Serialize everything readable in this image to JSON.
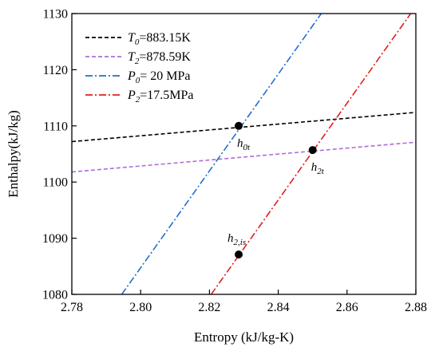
{
  "chart_data": {
    "type": "line",
    "xlabel": "Entropy (kJ/kg-K)",
    "ylabel": "Enthalpy(kJ/kg)",
    "xlim": [
      2.78,
      2.88
    ],
    "ylim": [
      1080,
      1130
    ],
    "xticks": [
      "2.78",
      "2.80",
      "2.82",
      "2.84",
      "2.86",
      "2.88"
    ],
    "yticks": [
      "1080",
      "1090",
      "1100",
      "1110",
      "1120",
      "1130"
    ],
    "grid": false,
    "legend_position": "top-left",
    "series": [
      {
        "name": "T0=883.15K",
        "label_main": "T",
        "label_sub": "0",
        "label_rest": "=883.15K",
        "color": "#000000",
        "dash": "dashed",
        "x": [
          2.78,
          2.88
        ],
        "y": [
          1107.2,
          1112.4
        ]
      },
      {
        "name": "T2=878.59K",
        "label_main": "T",
        "label_sub": "2",
        "label_rest": "=878.59K",
        "color": "#b36bd6",
        "dash": "dashed",
        "x": [
          2.78,
          2.88
        ],
        "y": [
          1101.8,
          1107.1
        ]
      },
      {
        "name": "P0= 20  MPa",
        "label_main": "P",
        "label_sub": "0",
        "label_rest": "= 20  MPa",
        "color": "#1f6fd1",
        "dash": "dashdot",
        "x": [
          2.7945,
          2.8525
        ],
        "y": [
          1080,
          1130
        ]
      },
      {
        "name": "P2=17.5MPa",
        "label_main": "P",
        "label_sub": "2",
        "label_rest": "=17.5MPa",
        "color": "#e0201b",
        "dash": "dashdot",
        "x": [
          2.8205,
          2.8785
        ],
        "y": [
          1080,
          1130
        ]
      }
    ],
    "points": [
      {
        "label_main": "h",
        "label_sub": "0t",
        "x": 2.8285,
        "y": 1110.0,
        "label_anchor": "below"
      },
      {
        "label_main": "h",
        "label_sub": "2t",
        "x": 2.85,
        "y": 1105.7,
        "label_anchor": "below"
      },
      {
        "label_main": "h",
        "label_sub": "2,is",
        "x": 2.8285,
        "y": 1087.1,
        "label_anchor": "above"
      }
    ]
  }
}
